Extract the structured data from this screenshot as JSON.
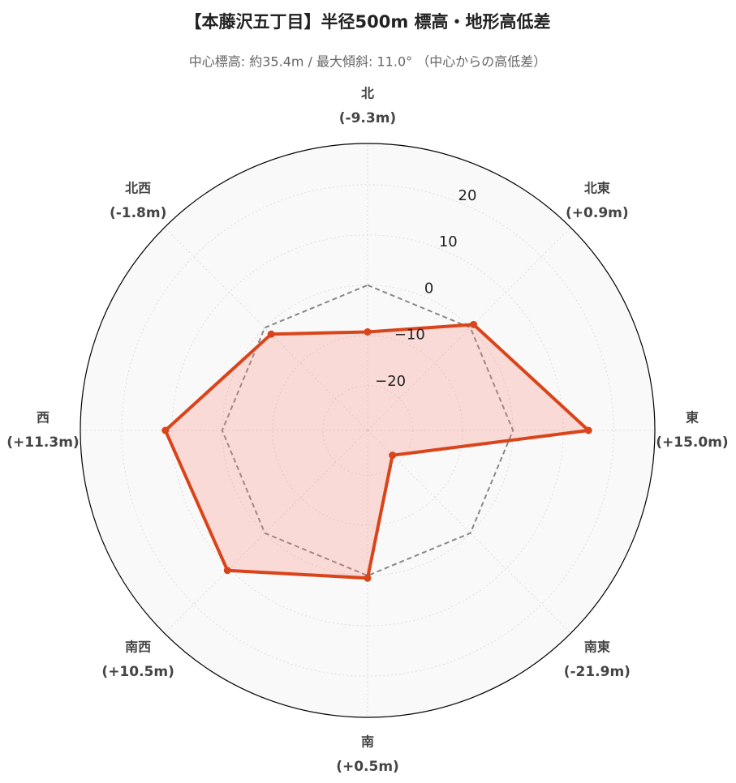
{
  "chart_data": {
    "type": "radar",
    "title": "【本藤沢五丁目】半径500m 標高・地形高低差",
    "subtitle": "中心標高: 約35.4m / 最大傾斜: 11.0° （中心からの高低差）",
    "categories": [
      "北",
      "北東",
      "東",
      "南東",
      "南",
      "南西",
      "西",
      "北西"
    ],
    "series": [
      {
        "color": "#d9441a",
        "values": [
          -9.3,
          0.9,
          15.0,
          -21.9,
          0.5,
          10.5,
          11.3,
          -1.8
        ],
        "value_labels": [
          "(-9.3m)",
          "(+0.9m)",
          "(+15.0m)",
          "(-21.9m)",
          "(+0.5m)",
          "(+10.5m)",
          "(+11.3m)",
          "(-1.8m)"
        ]
      }
    ],
    "reference": 0,
    "rlim": [
      -28.9,
      28.2
    ],
    "rticks": [
      {
        "value": -20,
        "label": "−20"
      },
      {
        "value": -10,
        "label": "−10"
      },
      0,
      10,
      20
    ],
    "grid": true
  }
}
